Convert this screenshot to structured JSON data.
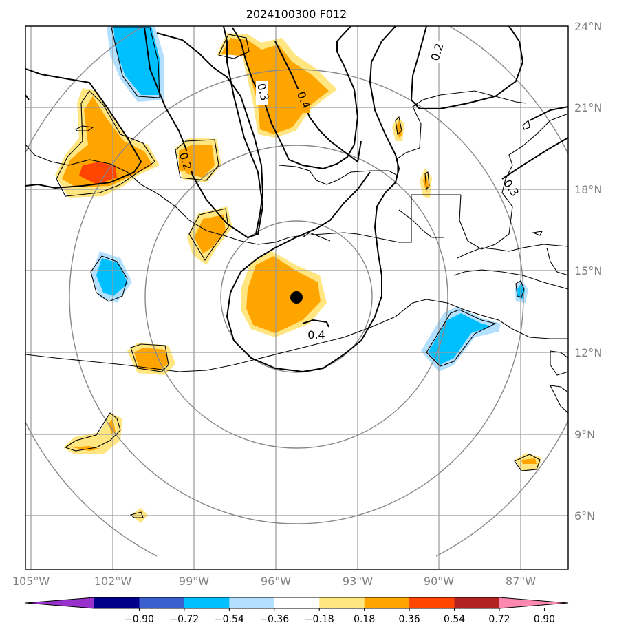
{
  "title": "2024100300 F012",
  "lon_ticks": [
    "105°W",
    "102°W",
    "99°W",
    "96°W",
    "93°W",
    "90°W",
    "87°W"
  ],
  "lat_ticks": [
    "6°N",
    "9°N",
    "12°N",
    "15°N",
    "18°N",
    "21°N",
    "24°N"
  ],
  "colorbar": {
    "levels": [
      "−0.90",
      "−0.72",
      "−0.54",
      "−0.36",
      "−0.18",
      "0.18",
      "0.36",
      "0.54",
      "0.72",
      "0.90"
    ],
    "colors": [
      "#9932cc",
      "#00008b",
      "#3a5fcd",
      "#00bfff",
      "#b3e0ff",
      "#ffffff",
      "#ffe680",
      "#ffa500",
      "#ff4500",
      "#b22222",
      "#ff88b0"
    ]
  },
  "contour_labels": [
    "0.2",
    "0.3",
    "0.4",
    "0.2",
    "0.4",
    "0.3"
  ],
  "storm_center": {
    "lon": -95.3,
    "lat": 14.0
  }
}
